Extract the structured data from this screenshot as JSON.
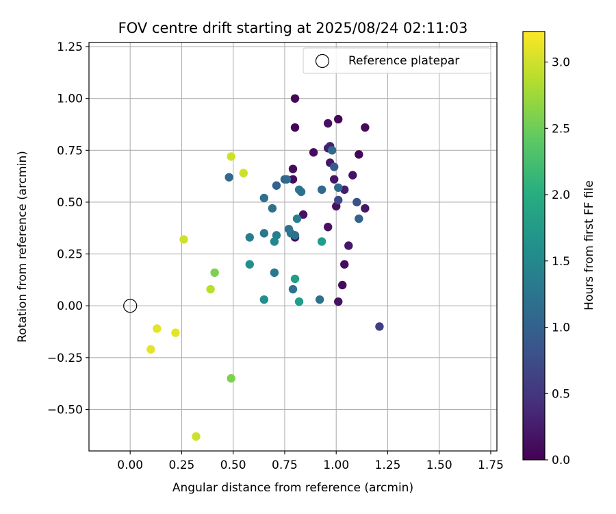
{
  "chart_data": {
    "type": "scatter",
    "title": "FOV centre drift starting at 2025/08/24 02:11:03",
    "xlabel": "Angular distance from reference (arcmin)",
    "ylabel": "Rotation from reference (arcmin)",
    "xlim": [
      -0.2,
      1.78
    ],
    "ylim": [
      -0.7,
      1.27
    ],
    "xticks": [
      "0.00",
      "0.25",
      "0.50",
      "0.75",
      "1.00",
      "1.25",
      "1.50",
      "1.75"
    ],
    "yticks": [
      "−0.50",
      "−0.25",
      "0.00",
      "0.25",
      "0.50",
      "0.75",
      "1.00",
      "1.25"
    ],
    "grid": true,
    "legend": {
      "placement": "top-right",
      "entries": [
        "Reference platepar"
      ]
    },
    "reference_point": {
      "x": 0.0,
      "y": 0.0,
      "marker": "hollow circle"
    },
    "colorbar": {
      "label": "Hours from first FF file",
      "range": [
        0.0,
        3.23
      ],
      "ticks": [
        "0.0",
        "0.5",
        "1.0",
        "1.5",
        "2.0",
        "2.5",
        "3.0"
      ],
      "colormap": "viridis"
    },
    "series": [
      {
        "points": [
          {
            "x": 0.8,
            "y": 1.0,
            "c": 0.05
          },
          {
            "x": 1.01,
            "y": 0.9,
            "c": 0.05
          },
          {
            "x": 0.96,
            "y": 0.88,
            "c": 0.15
          },
          {
            "x": 0.8,
            "y": 0.86,
            "c": 0.05
          },
          {
            "x": 1.14,
            "y": 0.86,
            "c": 0.1
          },
          {
            "x": 0.96,
            "y": 0.76,
            "c": 0.25
          },
          {
            "x": 0.97,
            "y": 0.77,
            "c": 0.3
          },
          {
            "x": 0.89,
            "y": 0.74,
            "c": 0.1
          },
          {
            "x": 1.11,
            "y": 0.73,
            "c": 0.05
          },
          {
            "x": 0.97,
            "y": 0.69,
            "c": 0.2
          },
          {
            "x": 0.79,
            "y": 0.66,
            "c": 0.1
          },
          {
            "x": 1.08,
            "y": 0.63,
            "c": 0.15
          },
          {
            "x": 0.79,
            "y": 0.61,
            "c": 0.1
          },
          {
            "x": 0.99,
            "y": 0.61,
            "c": 0.2
          },
          {
            "x": 1.04,
            "y": 0.56,
            "c": 0.25
          },
          {
            "x": 1.0,
            "y": 0.48,
            "c": 0.15
          },
          {
            "x": 1.14,
            "y": 0.47,
            "c": 0.2
          },
          {
            "x": 0.84,
            "y": 0.44,
            "c": 0.15
          },
          {
            "x": 0.96,
            "y": 0.38,
            "c": 0.15
          },
          {
            "x": 0.8,
            "y": 0.33,
            "c": 0.1
          },
          {
            "x": 1.06,
            "y": 0.29,
            "c": 0.2
          },
          {
            "x": 1.04,
            "y": 0.2,
            "c": 0.1
          },
          {
            "x": 1.03,
            "y": 0.1,
            "c": 0.1
          },
          {
            "x": 1.01,
            "y": 0.02,
            "c": 0.15
          },
          {
            "x": 1.21,
            "y": -0.1,
            "c": 0.6
          },
          {
            "x": 0.98,
            "y": 0.75,
            "c": 1.1
          },
          {
            "x": 0.99,
            "y": 0.67,
            "c": 0.9
          },
          {
            "x": 0.48,
            "y": 0.62,
            "c": 1.1
          },
          {
            "x": 0.75,
            "y": 0.61,
            "c": 1.0
          },
          {
            "x": 0.76,
            "y": 0.61,
            "c": 1.1
          },
          {
            "x": 0.71,
            "y": 0.58,
            "c": 1.0
          },
          {
            "x": 1.01,
            "y": 0.57,
            "c": 1.1
          },
          {
            "x": 0.93,
            "y": 0.56,
            "c": 1.1
          },
          {
            "x": 0.82,
            "y": 0.56,
            "c": 1.3
          },
          {
            "x": 0.83,
            "y": 0.55,
            "c": 1.2
          },
          {
            "x": 0.65,
            "y": 0.52,
            "c": 1.2
          },
          {
            "x": 1.01,
            "y": 0.51,
            "c": 0.7
          },
          {
            "x": 1.1,
            "y": 0.5,
            "c": 0.8
          },
          {
            "x": 0.69,
            "y": 0.47,
            "c": 1.2
          },
          {
            "x": 0.81,
            "y": 0.42,
            "c": 1.4
          },
          {
            "x": 1.11,
            "y": 0.42,
            "c": 1.0
          },
          {
            "x": 0.77,
            "y": 0.37,
            "c": 1.2
          },
          {
            "x": 0.65,
            "y": 0.35,
            "c": 1.3
          },
          {
            "x": 0.78,
            "y": 0.35,
            "c": 1.3
          },
          {
            "x": 0.8,
            "y": 0.34,
            "c": 1.2
          },
          {
            "x": 0.71,
            "y": 0.34,
            "c": 1.4
          },
          {
            "x": 0.58,
            "y": 0.33,
            "c": 1.4
          },
          {
            "x": 0.7,
            "y": 0.31,
            "c": 1.5
          },
          {
            "x": 0.93,
            "y": 0.31,
            "c": 1.8
          },
          {
            "x": 0.58,
            "y": 0.2,
            "c": 1.6
          },
          {
            "x": 0.7,
            "y": 0.16,
            "c": 1.3
          },
          {
            "x": 0.8,
            "y": 0.13,
            "c": 1.8
          },
          {
            "x": 0.79,
            "y": 0.08,
            "c": 1.2
          },
          {
            "x": 0.65,
            "y": 0.03,
            "c": 1.6
          },
          {
            "x": 0.92,
            "y": 0.03,
            "c": 1.2
          },
          {
            "x": 0.82,
            "y": 0.02,
            "c": 1.8
          },
          {
            "x": 0.49,
            "y": 0.72,
            "c": 3.0
          },
          {
            "x": 0.55,
            "y": 0.64,
            "c": 3.0
          },
          {
            "x": 0.26,
            "y": 0.32,
            "c": 3.0
          },
          {
            "x": 0.41,
            "y": 0.16,
            "c": 2.6
          },
          {
            "x": 0.39,
            "y": 0.08,
            "c": 2.9
          },
          {
            "x": 0.13,
            "y": -0.11,
            "c": 3.1
          },
          {
            "x": 0.22,
            "y": -0.13,
            "c": 3.1
          },
          {
            "x": 0.1,
            "y": -0.21,
            "c": 3.1
          },
          {
            "x": 0.49,
            "y": -0.35,
            "c": 2.6
          },
          {
            "x": 0.32,
            "y": -0.63,
            "c": 3.0
          }
        ]
      }
    ]
  }
}
